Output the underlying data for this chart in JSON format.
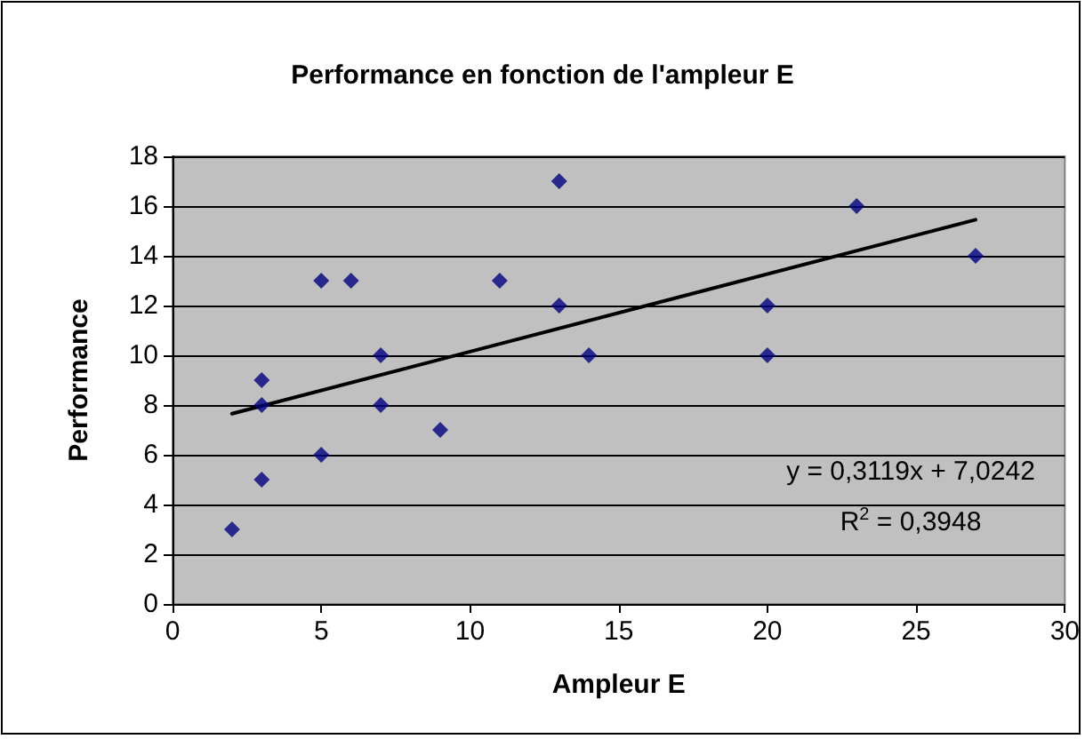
{
  "chart_data": {
    "type": "scatter",
    "title": "Performance en fonction de l'ampleur E",
    "xlabel": "Ampleur E",
    "ylabel": "Performance",
    "annotations": [
      "y = 0,3119x + 7,0242",
      "R$^{2}$ = 0,3948"
    ],
    "series": [
      {
        "color": "#000080",
        "marker": "diamond",
        "x": [
          2,
          3,
          3,
          3,
          5,
          5,
          6,
          7,
          7,
          9,
          11,
          13,
          13,
          14,
          20,
          20,
          23,
          27
        ],
        "values": [
          3,
          9,
          8,
          5,
          13,
          6,
          13,
          10,
          8,
          7,
          13,
          17,
          12,
          10,
          12,
          10,
          16,
          14
        ]
      },
      {
        "type": "line",
        "color": "#000000",
        "marker": "none",
        "line_style": "solid",
        "x": [
          2,
          27
        ],
        "values": [
          7.65,
          15.45
        ]
      }
    ],
    "xlim": [
      0,
      30
    ],
    "xticks": [
      0,
      5,
      10,
      15,
      20,
      25,
      30
    ],
    "ylim": [
      0,
      18
    ],
    "yticks": [
      0,
      2,
      4,
      6,
      8,
      10,
      12,
      14,
      16,
      18
    ],
    "grid": "y"
  }
}
